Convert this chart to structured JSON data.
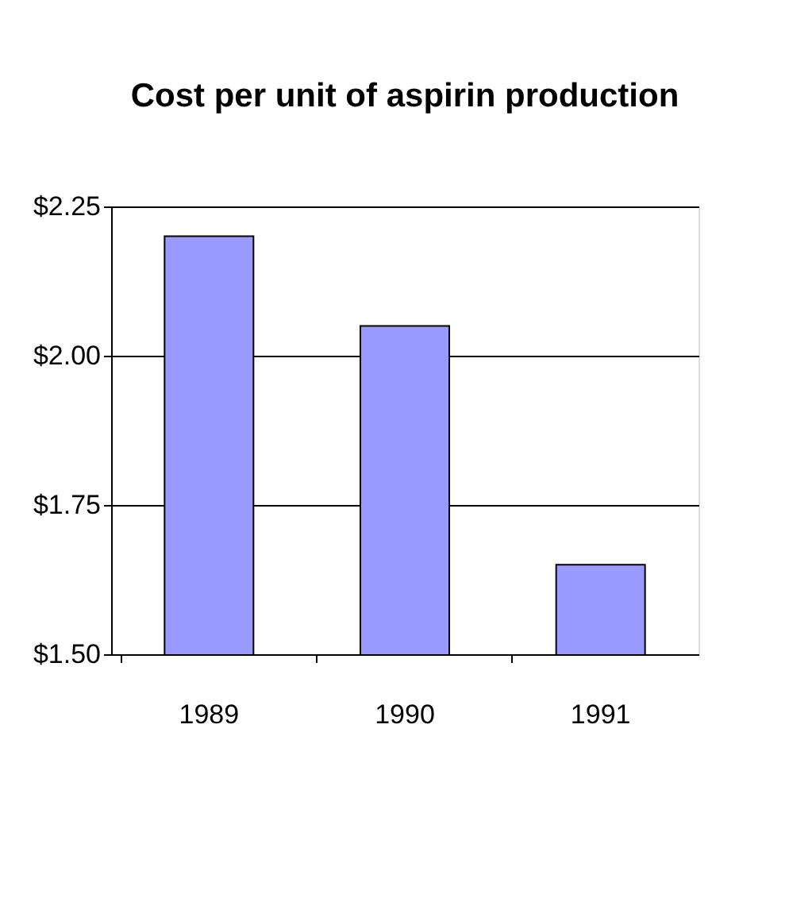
{
  "chart_data": {
    "type": "bar",
    "title": "Cost per unit of aspirin production",
    "categories": [
      "1989",
      "1990",
      "1991"
    ],
    "values": [
      2.2,
      2.05,
      1.65
    ],
    "color": "#9999ff",
    "ylim": [
      1.5,
      2.25
    ],
    "yticks": [
      {
        "value": 1.5,
        "label": "$1.50"
      },
      {
        "value": 1.75,
        "label": "$1.75"
      },
      {
        "value": 2.0,
        "label": "$2.00"
      },
      {
        "value": 2.25,
        "label": "$2.25"
      }
    ],
    "grid": "y"
  }
}
